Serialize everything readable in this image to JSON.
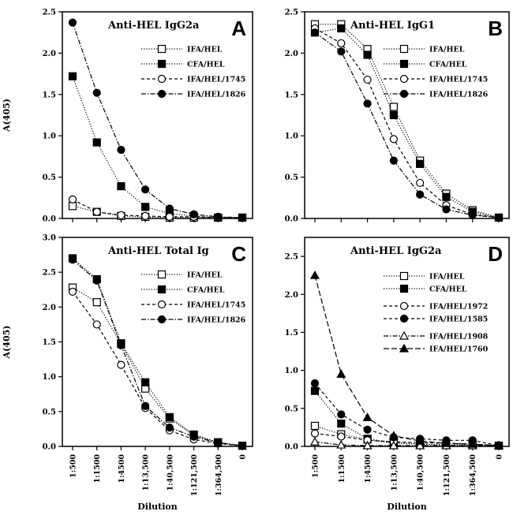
{
  "chart_data": [
    {
      "id": "A",
      "type": "line",
      "title": "Anti-HEL  IgG2a",
      "panel_letter": "A",
      "ylabel": "A(405)",
      "xlabel": "",
      "ylim": [
        0,
        2.5
      ],
      "yticks": [
        "0.0",
        "0.5",
        "1.0",
        "1.5",
        "2.0",
        "2.5"
      ],
      "categories": [
        "1:500",
        "1:1500",
        "1:4500",
        "1:13,500",
        "1:40,500",
        "1:121,500",
        "1:364,500",
        "0"
      ],
      "show_xticklabels": false,
      "legend_position": "top-right",
      "series": [
        {
          "name": "IFA/HEL",
          "marker": "square-open",
          "dash": "dotted",
          "values": [
            0.15,
            0.08,
            0.03,
            0.02,
            0.01,
            0.01,
            0.01,
            0.01
          ]
        },
        {
          "name": "CFA/HEL",
          "marker": "square-filled",
          "dash": "dotted",
          "values": [
            1.72,
            0.92,
            0.39,
            0.14,
            0.06,
            0.03,
            0.01,
            0.01
          ]
        },
        {
          "name": "IFA/HEL/1745",
          "marker": "circle-open",
          "dash": "dashed",
          "values": [
            0.23,
            0.08,
            0.04,
            0.03,
            0.02,
            0.02,
            0.01,
            0.01
          ]
        },
        {
          "name": "IFA/HEL/1826",
          "marker": "circle-filled",
          "dash": "dashdot",
          "values": [
            2.37,
            1.52,
            0.83,
            0.35,
            0.12,
            0.05,
            0.02,
            0.01
          ]
        }
      ]
    },
    {
      "id": "B",
      "type": "line",
      "title": "Anti-HEL  IgG1",
      "panel_letter": "B",
      "ylabel": "",
      "xlabel": "",
      "ylim": [
        0,
        2.5
      ],
      "yticks": [
        "0.0",
        "0.5",
        "1.0",
        "1.5",
        "2.0",
        "2.5"
      ],
      "categories": [
        "1:500",
        "1:1500",
        "1:4500",
        "1:13,500",
        "1:40,500",
        "1:121,500",
        "1:364,500",
        "0"
      ],
      "show_xticklabels": false,
      "legend_position": "top-right",
      "series": [
        {
          "name": "IFA/HEL",
          "marker": "square-open",
          "dash": "dotted",
          "values": [
            2.35,
            2.35,
            2.05,
            1.35,
            0.7,
            0.3,
            0.1,
            0.01
          ]
        },
        {
          "name": "CFA/HEL",
          "marker": "square-filled",
          "dash": "dotted",
          "values": [
            2.25,
            2.3,
            1.98,
            1.25,
            0.66,
            0.26,
            0.08,
            0.01
          ]
        },
        {
          "name": "IFA/HEL/1745",
          "marker": "circle-open",
          "dash": "dashed",
          "values": [
            2.3,
            2.12,
            1.68,
            0.96,
            0.43,
            0.16,
            0.05,
            0.01
          ]
        },
        {
          "name": "IFA/HEL/1826",
          "marker": "circle-filled",
          "dash": "dashdot",
          "values": [
            2.25,
            2.02,
            1.39,
            0.7,
            0.29,
            0.11,
            0.04,
            0.01
          ]
        }
      ]
    },
    {
      "id": "C",
      "type": "line",
      "title": "Anti-HEL  Total Ig",
      "panel_letter": "C",
      "ylabel": "A(405)",
      "xlabel": "Dilution",
      "ylim": [
        0,
        3.0
      ],
      "yticks": [
        "0.0",
        "0.5",
        "1.0",
        "1.5",
        "2.0",
        "2.5",
        "3.0"
      ],
      "categories": [
        "1:500",
        "1:1500",
        "1:4500",
        "1:13,500",
        "1:40,500",
        "1:121,500",
        "1:364,500",
        "0"
      ],
      "show_xticklabels": true,
      "legend_position": "top-right",
      "series": [
        {
          "name": "IFA/HEL",
          "marker": "square-open",
          "dash": "dotted",
          "values": [
            2.28,
            2.07,
            1.47,
            0.83,
            0.4,
            0.16,
            0.06,
            0.01
          ]
        },
        {
          "name": "CFA/HEL",
          "marker": "square-filled",
          "dash": "dotted",
          "values": [
            2.7,
            2.4,
            1.48,
            0.92,
            0.42,
            0.17,
            0.05,
            0.01
          ]
        },
        {
          "name": "IFA/HEL/1745",
          "marker": "circle-open",
          "dash": "dashed",
          "values": [
            2.22,
            1.75,
            1.17,
            0.55,
            0.23,
            0.1,
            0.04,
            0.01
          ]
        },
        {
          "name": "IFA/HEL/1826",
          "marker": "circle-filled",
          "dash": "dashdot",
          "values": [
            2.68,
            2.38,
            1.45,
            0.58,
            0.27,
            0.14,
            0.05,
            0.01
          ]
        }
      ]
    },
    {
      "id": "D",
      "type": "line",
      "title": "Anti-HEL  IgG2a",
      "panel_letter": "D",
      "ylabel": "",
      "xlabel": "Dilution",
      "ylim": [
        0,
        2.75
      ],
      "yticks": [
        "0.0",
        "0.5",
        "1.0",
        "1.5",
        "2.0",
        "2.5"
      ],
      "categories": [
        "1:500",
        "1:1500",
        "1:4500",
        "1:13,500",
        "1:40,500",
        "1:121,500",
        "1:364,500",
        "0"
      ],
      "show_xticklabels": true,
      "legend_position": "top-right",
      "series": [
        {
          "name": "IFA/HEL",
          "marker": "square-open",
          "dash": "dotted",
          "values": [
            0.27,
            0.16,
            0.09,
            0.04,
            0.03,
            0.02,
            0.02,
            0.01
          ]
        },
        {
          "name": "CFA/HEL",
          "marker": "square-filled",
          "dash": "dotted",
          "values": [
            0.73,
            0.3,
            0.1,
            0.05,
            0.03,
            0.02,
            0.02,
            0.01
          ]
        },
        {
          "name": "IFA/HEL/1972",
          "marker": "circle-open",
          "dash": "dashed",
          "values": [
            0.17,
            0.13,
            0.08,
            0.06,
            0.05,
            0.04,
            0.03,
            0.01
          ]
        },
        {
          "name": "IFA/HEL/1585",
          "marker": "circle-filled",
          "dash": "dashed",
          "values": [
            0.83,
            0.42,
            0.22,
            0.12,
            0.1,
            0.08,
            0.08,
            0.01
          ]
        },
        {
          "name": "IFA/HEL/1908",
          "marker": "triangle-open",
          "dash": "dashdot",
          "values": [
            0.06,
            0.02,
            0.01,
            0.01,
            0.01,
            0.01,
            0.01,
            0.01
          ]
        },
        {
          "name": "IFA/HEL/1760",
          "marker": "triangle-filled",
          "dash": "longdash",
          "values": [
            2.25,
            0.95,
            0.38,
            0.14,
            0.07,
            0.04,
            0.03,
            0.01
          ]
        }
      ]
    }
  ]
}
